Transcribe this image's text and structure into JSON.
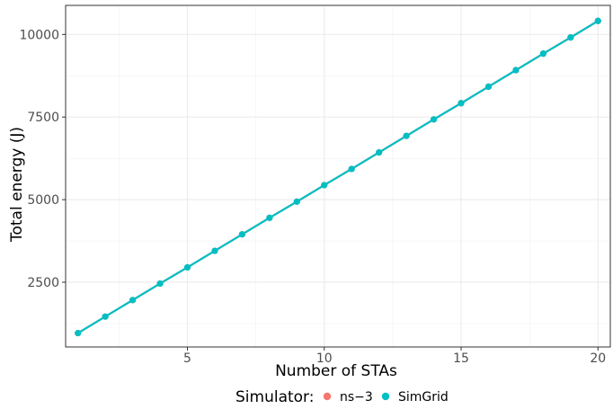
{
  "chart_data": {
    "type": "line",
    "xlabel": "Number of STAs",
    "ylabel": "Total energy (J)",
    "xlim": [
      0.55,
      20.45
    ],
    "ylim": [
      540,
      10880
    ],
    "x_ticks": [
      5,
      10,
      15,
      20
    ],
    "x_tick_labels": [
      "5",
      "10",
      "15",
      "20"
    ],
    "y_ticks": [
      2500,
      5000,
      7500,
      10000
    ],
    "y_tick_labels": [
      "2500",
      "5000",
      "7500",
      "10000"
    ],
    "grid": true,
    "legend_title": "Simulator:",
    "legend_position": "bottom",
    "x": [
      1,
      2,
      3,
      4,
      5,
      6,
      7,
      8,
      9,
      10,
      11,
      12,
      13,
      14,
      15,
      16,
      17,
      18,
      19,
      20
    ],
    "series": [
      {
        "name": "ns−3",
        "color": "#F8766D",
        "values": [
          960,
          1460,
          1960,
          2460,
          2950,
          3450,
          3950,
          4450,
          4940,
          5440,
          5930,
          6430,
          6930,
          7430,
          7920,
          8420,
          8920,
          9420,
          9910,
          10410
        ]
      },
      {
        "name": "SimGrid",
        "color": "#00BFC4",
        "values": [
          960,
          1460,
          1960,
          2460,
          2950,
          3450,
          3950,
          4450,
          4940,
          5440,
          5930,
          6430,
          6930,
          7430,
          7920,
          8420,
          8920,
          9420,
          9910,
          10410
        ]
      }
    ]
  }
}
